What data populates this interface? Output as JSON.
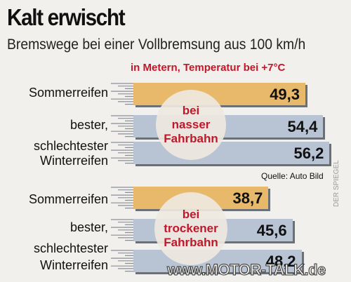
{
  "title": "Kalt erwischt",
  "subtitle": "Bremswege bei einer Vollbremsung aus 100 km/h",
  "unit_note": "in Metern, Temperatur bei +7°C",
  "source": "Quelle: Auto Bild",
  "watermark": "www.MOTOR-TALK.de",
  "side_credit": "DER SPIEGEL",
  "colors": {
    "sommer": "#e8b96a",
    "winter": "#b8c3d3",
    "accent": "#c0182a"
  },
  "chart_data": [
    {
      "type": "bar",
      "title": "bei nasser Fahrbahn",
      "categories": [
        "Sommerreifen",
        "bester, Winterreifen",
        "schlechtester Winterreifen"
      ],
      "values": [
        49.3,
        54.4,
        56.2
      ],
      "labels": [
        "49,3",
        "54,4",
        "56,2"
      ],
      "circle": [
        "bei",
        "nasser",
        "Fahrbahn"
      ]
    },
    {
      "type": "bar",
      "title": "bei trockener Fahrbahn",
      "categories": [
        "Sommerreifen",
        "bester, Winterreifen",
        "schlechtester Winterreifen"
      ],
      "values": [
        38.7,
        45.6,
        48.2
      ],
      "labels": [
        "38,7",
        "45,6",
        "48,2"
      ],
      "circle": [
        "bei",
        "trockener",
        "Fahrbahn"
      ]
    }
  ],
  "row_labels": {
    "sommer": "Sommerreifen",
    "bester": "bester,",
    "schlechtester": "schlechtester",
    "winter": "Winterreifen"
  }
}
